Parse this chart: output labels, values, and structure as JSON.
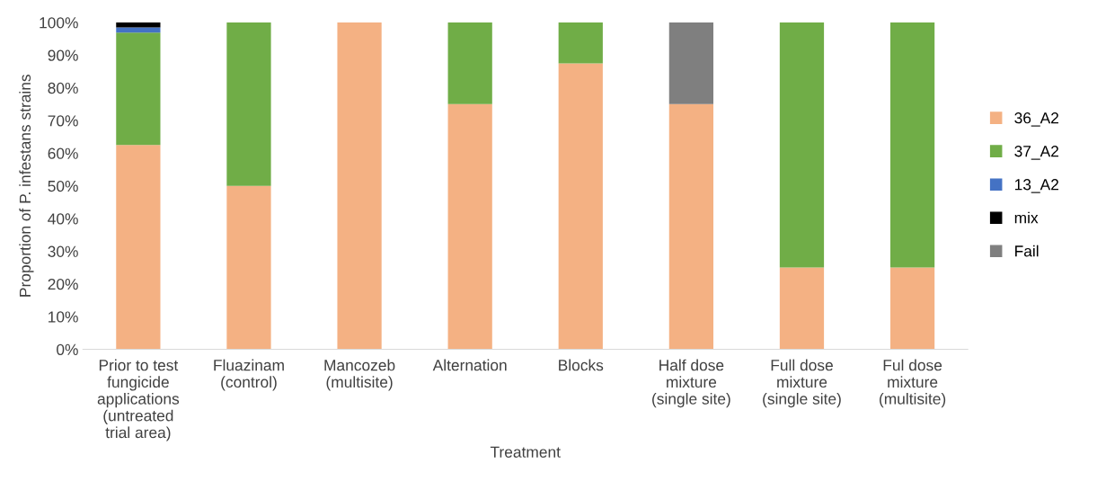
{
  "chart_data": {
    "type": "bar",
    "stacked": true,
    "xlabel": "Treatment",
    "ylabel": "Proportion of P. infestans strains",
    "categories": [
      "Prior to test fungicide applications (untreated trial area)",
      "Fluazinam (control)",
      "Mancozeb (multisite)",
      "Alternation",
      "Blocks",
      "Half dose mixture (single site)",
      "Full dose mixture (single site)",
      "Ful dose mixture (multisite)"
    ],
    "series": [
      {
        "name": "36_A2",
        "color": "#f4b183",
        "values": [
          62.5,
          50,
          100,
          75,
          87.5,
          75,
          25,
          25
        ]
      },
      {
        "name": "37_A2",
        "color": "#70ad47",
        "values": [
          34.4,
          50,
          null,
          25,
          12.5,
          null,
          75,
          75
        ]
      },
      {
        "name": "13_A2",
        "color": "#4472c4",
        "values": [
          1.6,
          null,
          null,
          null,
          null,
          null,
          null,
          null
        ]
      },
      {
        "name": "mix",
        "color": "#000000",
        "values": [
          1.5,
          null,
          null,
          null,
          null,
          null,
          null,
          null
        ]
      },
      {
        "name": "Fail",
        "color": "#7f7f7f",
        "values": [
          null,
          null,
          null,
          null,
          null,
          25,
          null,
          null
        ]
      }
    ],
    "ylim": [
      0,
      100
    ],
    "yticks": [
      {
        "value": 0,
        "label": "0%"
      },
      {
        "value": 10,
        "label": "10%"
      },
      {
        "value": 20,
        "label": "20%"
      },
      {
        "value": 30,
        "label": "30%"
      },
      {
        "value": 40,
        "label": "40%"
      },
      {
        "value": 50,
        "label": "50%"
      },
      {
        "value": 60,
        "label": "60%"
      },
      {
        "value": 70,
        "label": "70%"
      },
      {
        "value": 80,
        "label": "80%"
      },
      {
        "value": 90,
        "label": "90%"
      },
      {
        "value": 100,
        "label": "100%"
      }
    ],
    "grid": false,
    "legend": "right"
  }
}
